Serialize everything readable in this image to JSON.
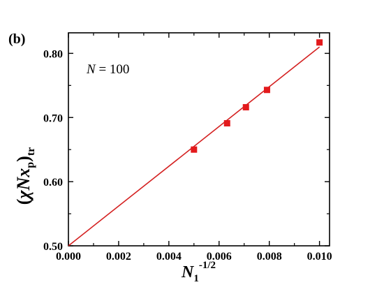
{
  "panel_label": "(b)",
  "annotation": {
    "var": "N",
    "rest": " = 100"
  },
  "chart_data": {
    "type": "scatter",
    "xlabel": {
      "base": "N",
      "sub": "1",
      "sup": "-1/2"
    },
    "ylabel": {
      "open": "(",
      "chi": "χ",
      "n": "N",
      "x": "x",
      "sub_p": "p",
      "close": ")",
      "sub_tr": "tr"
    },
    "xlim": [
      0.0,
      0.0104
    ],
    "ylim": [
      0.5,
      0.832
    ],
    "xticks": [
      0.0,
      0.002,
      0.004,
      0.006,
      0.008,
      0.01
    ],
    "xtick_labels": [
      "0.000",
      "0.002",
      "0.004",
      "0.006",
      "0.008",
      "0.010"
    ],
    "yticks": [
      0.5,
      0.6,
      0.7,
      0.8
    ],
    "ytick_labels": [
      "0.50",
      "0.60",
      "0.70",
      "0.80"
    ],
    "grid": false,
    "marker_color": "#e31a1c",
    "line_color": "#d42020",
    "series": [
      {
        "kind": "points",
        "marker": "square",
        "x": [
          0.005,
          0.00632,
          0.00707,
          0.00791,
          0.01
        ],
        "y": [
          0.65,
          0.691,
          0.716,
          0.743,
          0.817
        ]
      },
      {
        "kind": "fit-line",
        "x": [
          0.0,
          0.01
        ],
        "y": [
          0.5,
          0.81
        ]
      }
    ]
  }
}
